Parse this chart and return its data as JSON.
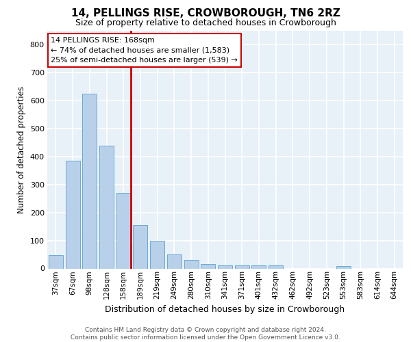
{
  "title": "14, PELLINGS RISE, CROWBOROUGH, TN6 2RZ",
  "subtitle": "Size of property relative to detached houses in Crowborough",
  "xlabel": "Distribution of detached houses by size in Crowborough",
  "ylabel": "Number of detached properties",
  "categories": [
    "37sqm",
    "67sqm",
    "98sqm",
    "128sqm",
    "158sqm",
    "189sqm",
    "219sqm",
    "249sqm",
    "280sqm",
    "310sqm",
    "341sqm",
    "371sqm",
    "401sqm",
    "432sqm",
    "462sqm",
    "492sqm",
    "523sqm",
    "553sqm",
    "583sqm",
    "614sqm",
    "644sqm"
  ],
  "values": [
    48,
    385,
    625,
    440,
    270,
    155,
    98,
    50,
    30,
    15,
    10,
    10,
    12,
    10,
    0,
    0,
    0,
    8,
    0,
    0,
    0
  ],
  "bar_color": "#b8d0ea",
  "bar_edge_color": "#6aaad4",
  "vline_color": "#cc0000",
  "vline_x": 4.45,
  "annotation_line1": "14 PELLINGS RISE: 168sqm",
  "annotation_line2": "← 74% of detached houses are smaller (1,583)",
  "annotation_line3": "25% of semi-detached houses are larger (539) →",
  "ylim": [
    0,
    850
  ],
  "yticks": [
    0,
    100,
    200,
    300,
    400,
    500,
    600,
    700,
    800
  ],
  "background_color": "#e8f0f8",
  "grid_color": "#ffffff",
  "footer_line1": "Contains HM Land Registry data © Crown copyright and database right 2024.",
  "footer_line2": "Contains public sector information licensed under the Open Government Licence v3.0."
}
